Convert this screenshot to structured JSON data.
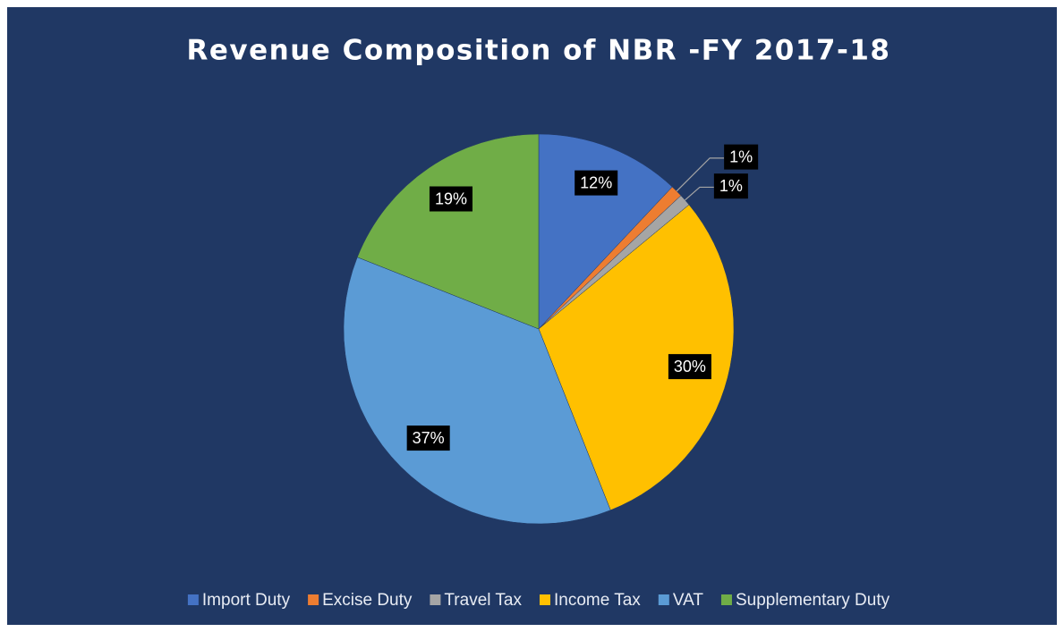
{
  "chart_data": {
    "type": "pie",
    "title": "Revenue Composition of NBR -FY 2017-18",
    "categories": [
      "Import Duty",
      "Excise Duty",
      "Travel Tax",
      "Income Tax",
      "VAT",
      "Supplementary Duty"
    ],
    "values": [
      12,
      1,
      1,
      30,
      37,
      19
    ],
    "value_labels": [
      "12%",
      "1%",
      "1%",
      "30%",
      "37%",
      "19%"
    ],
    "colors": [
      "#4472c4",
      "#ed7d31",
      "#a5a5a5",
      "#ffc000",
      "#5b9bd5",
      "#70ad47"
    ],
    "legend": "bottom"
  }
}
